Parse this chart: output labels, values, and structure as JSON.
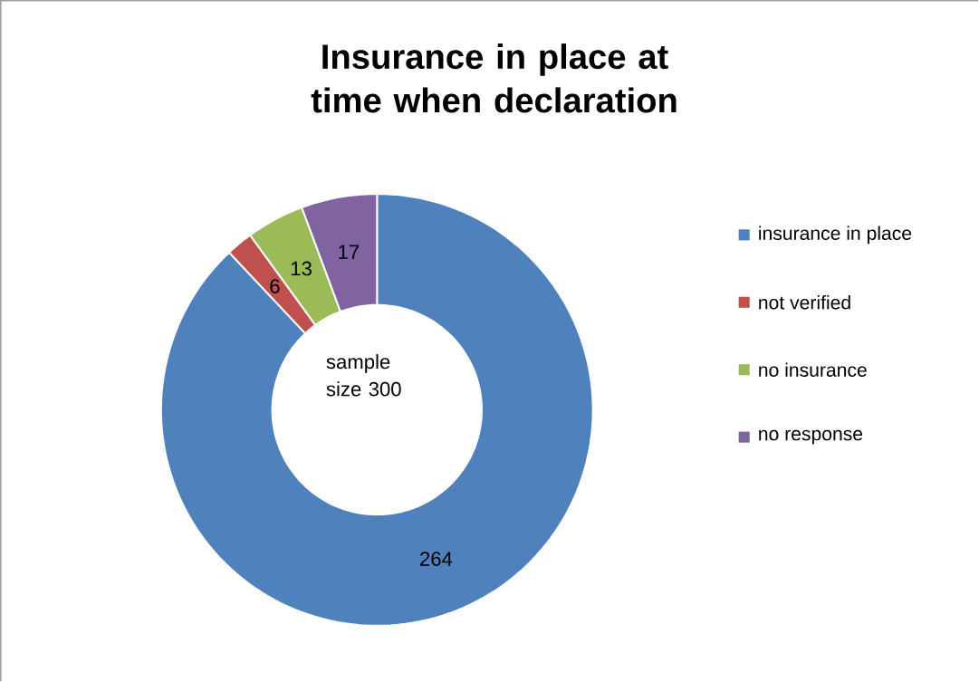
{
  "chart_data": {
    "type": "donut",
    "title": "Insurance in place at time when declaration",
    "categories": [
      "insurance in place",
      "not verified",
      "no insurance",
      "no response"
    ],
    "values": [
      264,
      6,
      13,
      17
    ],
    "colors": [
      "#4f81bd",
      "#c0504d",
      "#9bbb59",
      "#8064a2"
    ],
    "data_labels": true,
    "legend": "right",
    "annotations": [
      "sample size 300"
    ]
  }
}
